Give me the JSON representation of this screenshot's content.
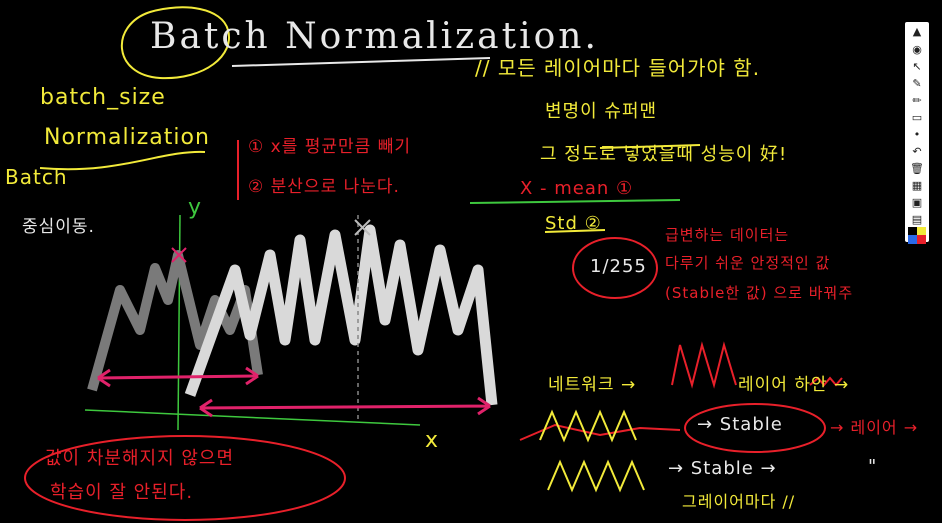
{
  "title": "Batch Normalization.",
  "left_notes": {
    "batch_size": "batch_size",
    "normalization": "Normalization",
    "batch": "Batch",
    "center_move": "중심이동."
  },
  "method_notes": {
    "step1": "① x를 평균만큼 빼기",
    "step2": "② 분산으로 나눈다."
  },
  "right_notes": {
    "every_layer": "// 모든 레이어마다 들어가야 함.",
    "superman": "변명이 슈퍼맨",
    "tried": "그 정도로 넣었을때 성능이 好!",
    "x_mean": "X - mean ①",
    "std": "Std ②",
    "fraction": "1/255",
    "changing_data": "급변하는 데이터는",
    "easy_stable": "다루기 쉬운 안정적인 값",
    "stable_value": "(Stable한 값) 으로 바꿔주",
    "network": "네트워크 →",
    "layer_inside": "레이어 하안 →",
    "stable1": "→ Stable",
    "layer_arrow": "→ 레이어 →",
    "stable2": "→ Stable →",
    "ditto": "\"",
    "every_layer2": "그레이어마다 //"
  },
  "bottom_note": {
    "line1": "값이 차분해지지 않으면",
    "line2": "학습이 잘 안된다."
  },
  "axes": {
    "y": "y",
    "x": "x"
  },
  "toolbar": {
    "tools": [
      "pin-icon",
      "eye-icon",
      "cursor-icon",
      "pen-icon",
      "marker-icon",
      "eraser-icon",
      "dot-icon",
      "undo-icon",
      "trash-icon",
      "select-icon",
      "camera-icon",
      "page-icon"
    ],
    "colors": [
      "#000000",
      "#f2ea3a",
      "#2a6ae8",
      "#e8202a"
    ]
  }
}
